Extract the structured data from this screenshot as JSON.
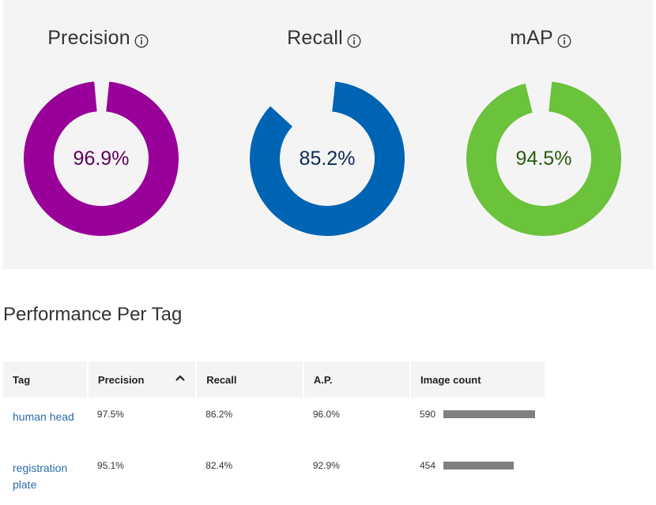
{
  "metrics": [
    {
      "title": "Precision",
      "value_label": "96.9%",
      "value": 96.9,
      "color": "#990099",
      "text_color": "#5c005c",
      "icon": "info-icon"
    },
    {
      "title": "Recall",
      "value_label": "85.2%",
      "value": 85.2,
      "color": "#0064b4",
      "text_color": "#0b2a54",
      "icon": "info-icon"
    },
    {
      "title": "mAP",
      "value_label": "94.5%",
      "value": 94.5,
      "color": "#6bc23b",
      "text_color": "#2a5a12",
      "icon": "info-icon"
    }
  ],
  "section_title": "Performance Per Tag",
  "table": {
    "headers": {
      "tag": "Tag",
      "precision": "Precision",
      "recall": "Recall",
      "ap": "A.P.",
      "image_count": "Image count"
    },
    "sorted_column": "precision",
    "sort_icon": "chevron-up-icon",
    "rows": [
      {
        "tag": "human head",
        "precision": "97.5%",
        "recall": "86.2%",
        "ap": "96.0%",
        "image_count": "590",
        "count_value": 590
      },
      {
        "tag": "registration plate",
        "precision": "95.1%",
        "recall": "82.4%",
        "ap": "92.9%",
        "image_count": "454",
        "count_value": 454
      }
    ],
    "bar_color": "#7f7f7f",
    "link_color": "#2b6ca8"
  }
}
